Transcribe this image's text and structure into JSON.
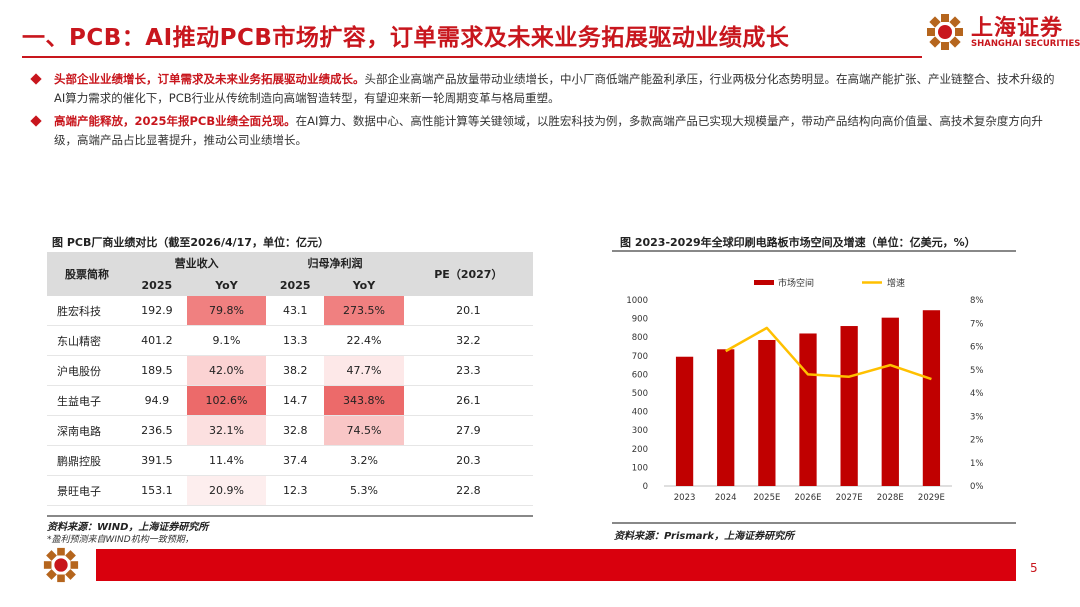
{
  "page": {
    "title": "一、PCB：AI推动PCB市场扩容，订单需求及未来业务拓展驱动业绩成长",
    "logo_cn": "上海证券",
    "logo_en": "SHANGHAI SECURITIES",
    "page_number": "5",
    "accent": "#c8161d",
    "footer_color": "#d9000d"
  },
  "bullets": [
    {
      "highlight": "头部企业业绩增长，订单需求及未来业务拓展驱动业绩成长。",
      "text": "头部企业高端产品放量带动业绩增长，中小厂商低端产能盈利承压，行业两极分化态势明显。在高端产能扩张、产业链整合、技术升级的AI算力需求的催化下，PCB行业从传统制造向高端智造转型，有望迎来新一轮周期变革与格局重塑。"
    },
    {
      "highlight": "高端产能释放，2025年报PCB业绩全面兑现。",
      "text": "在AI算力、数据中心、高性能计算等关键领域，以胜宏科技为例，多款高端产品已实现大规模量产，带动产品结构向高价值量、高技术复杂度方向升级，高端产品占比显著提升，推动公司业绩增长。"
    }
  ],
  "table": {
    "title": "图  PCB厂商业绩对比（截至2026/4/17，单位：亿元）",
    "headers": {
      "name": "股票简称",
      "revenue": "营业收入",
      "profit": "归母净利润",
      "pe": "PE（2027）",
      "year": "2025",
      "yoy": "YoY"
    },
    "rows": [
      {
        "name": "胜宏科技",
        "rev": "192.9",
        "rev_yoy": "79.8%",
        "rev_yoy_c": "#f08080",
        "np": "43.1",
        "np_yoy": "273.5%",
        "np_yoy_c": "#f08080",
        "pe": "20.1"
      },
      {
        "name": "东山精密",
        "rev": "401.2",
        "rev_yoy": "9.1%",
        "rev_yoy_c": "#ffffff",
        "np": "13.3",
        "np_yoy": "22.4%",
        "np_yoy_c": "#ffffff",
        "pe": "32.2"
      },
      {
        "name": "沪电股份",
        "rev": "189.5",
        "rev_yoy": "42.0%",
        "rev_yoy_c": "#fbd3d3",
        "np": "38.2",
        "np_yoy": "47.7%",
        "np_yoy_c": "#fde8e8",
        "pe": "23.3"
      },
      {
        "name": "生益电子",
        "rev": "94.9",
        "rev_yoy": "102.6%",
        "rev_yoy_c": "#ec6a6a",
        "np": "14.7",
        "np_yoy": "343.8%",
        "np_yoy_c": "#ec6a6a",
        "pe": "26.1"
      },
      {
        "name": "深南电路",
        "rev": "236.5",
        "rev_yoy": "32.1%",
        "rev_yoy_c": "#fce0e0",
        "np": "32.8",
        "np_yoy": "74.5%",
        "np_yoy_c": "#f9c6c6",
        "pe": "27.9"
      },
      {
        "name": "鹏鼎控股",
        "rev": "391.5",
        "rev_yoy": "11.4%",
        "rev_yoy_c": "#ffffff",
        "np": "37.4",
        "np_yoy": "3.2%",
        "np_yoy_c": "#ffffff",
        "pe": "20.3"
      },
      {
        "name": "景旺电子",
        "rev": "153.1",
        "rev_yoy": "20.9%",
        "rev_yoy_c": "#fdeeee",
        "np": "12.3",
        "np_yoy": "5.3%",
        "np_yoy_c": "#ffffff",
        "pe": "22.8"
      }
    ],
    "source": "资料来源：WIND，上海证券研究所",
    "note": "*盈利预测来自WIND机构一致预期，"
  },
  "chart_data": {
    "type": "bar",
    "title": "图  2023-2029年全球印刷电路板市场空间及增速（单位：亿美元，%）",
    "categories": [
      "2023",
      "2024",
      "2025E",
      "2026E",
      "2027E",
      "2028E",
      "2029E"
    ],
    "series": [
      {
        "name": "市场空间",
        "type": "bar",
        "axis": "left",
        "color": "#c00000",
        "values": [
          695,
          735,
          785,
          820,
          860,
          905,
          945
        ]
      },
      {
        "name": "增速",
        "type": "line",
        "axis": "right",
        "color": "#ffc000",
        "values": [
          null,
          5.8,
          6.8,
          4.8,
          4.7,
          5.2,
          4.6
        ]
      }
    ],
    "left_axis": {
      "min": 0,
      "max": 1000,
      "ticks": [
        "0",
        "100",
        "200",
        "300",
        "400",
        "500",
        "600",
        "700",
        "800",
        "900",
        "1000"
      ]
    },
    "right_axis": {
      "min": 0,
      "max": 8,
      "ticks": [
        "0%",
        "1%",
        "2%",
        "3%",
        "4%",
        "5%",
        "6%",
        "7%",
        "8%"
      ]
    },
    "legend_position": "top",
    "grid": false,
    "source": "资料来源：Prismark，上海证券研究所"
  }
}
